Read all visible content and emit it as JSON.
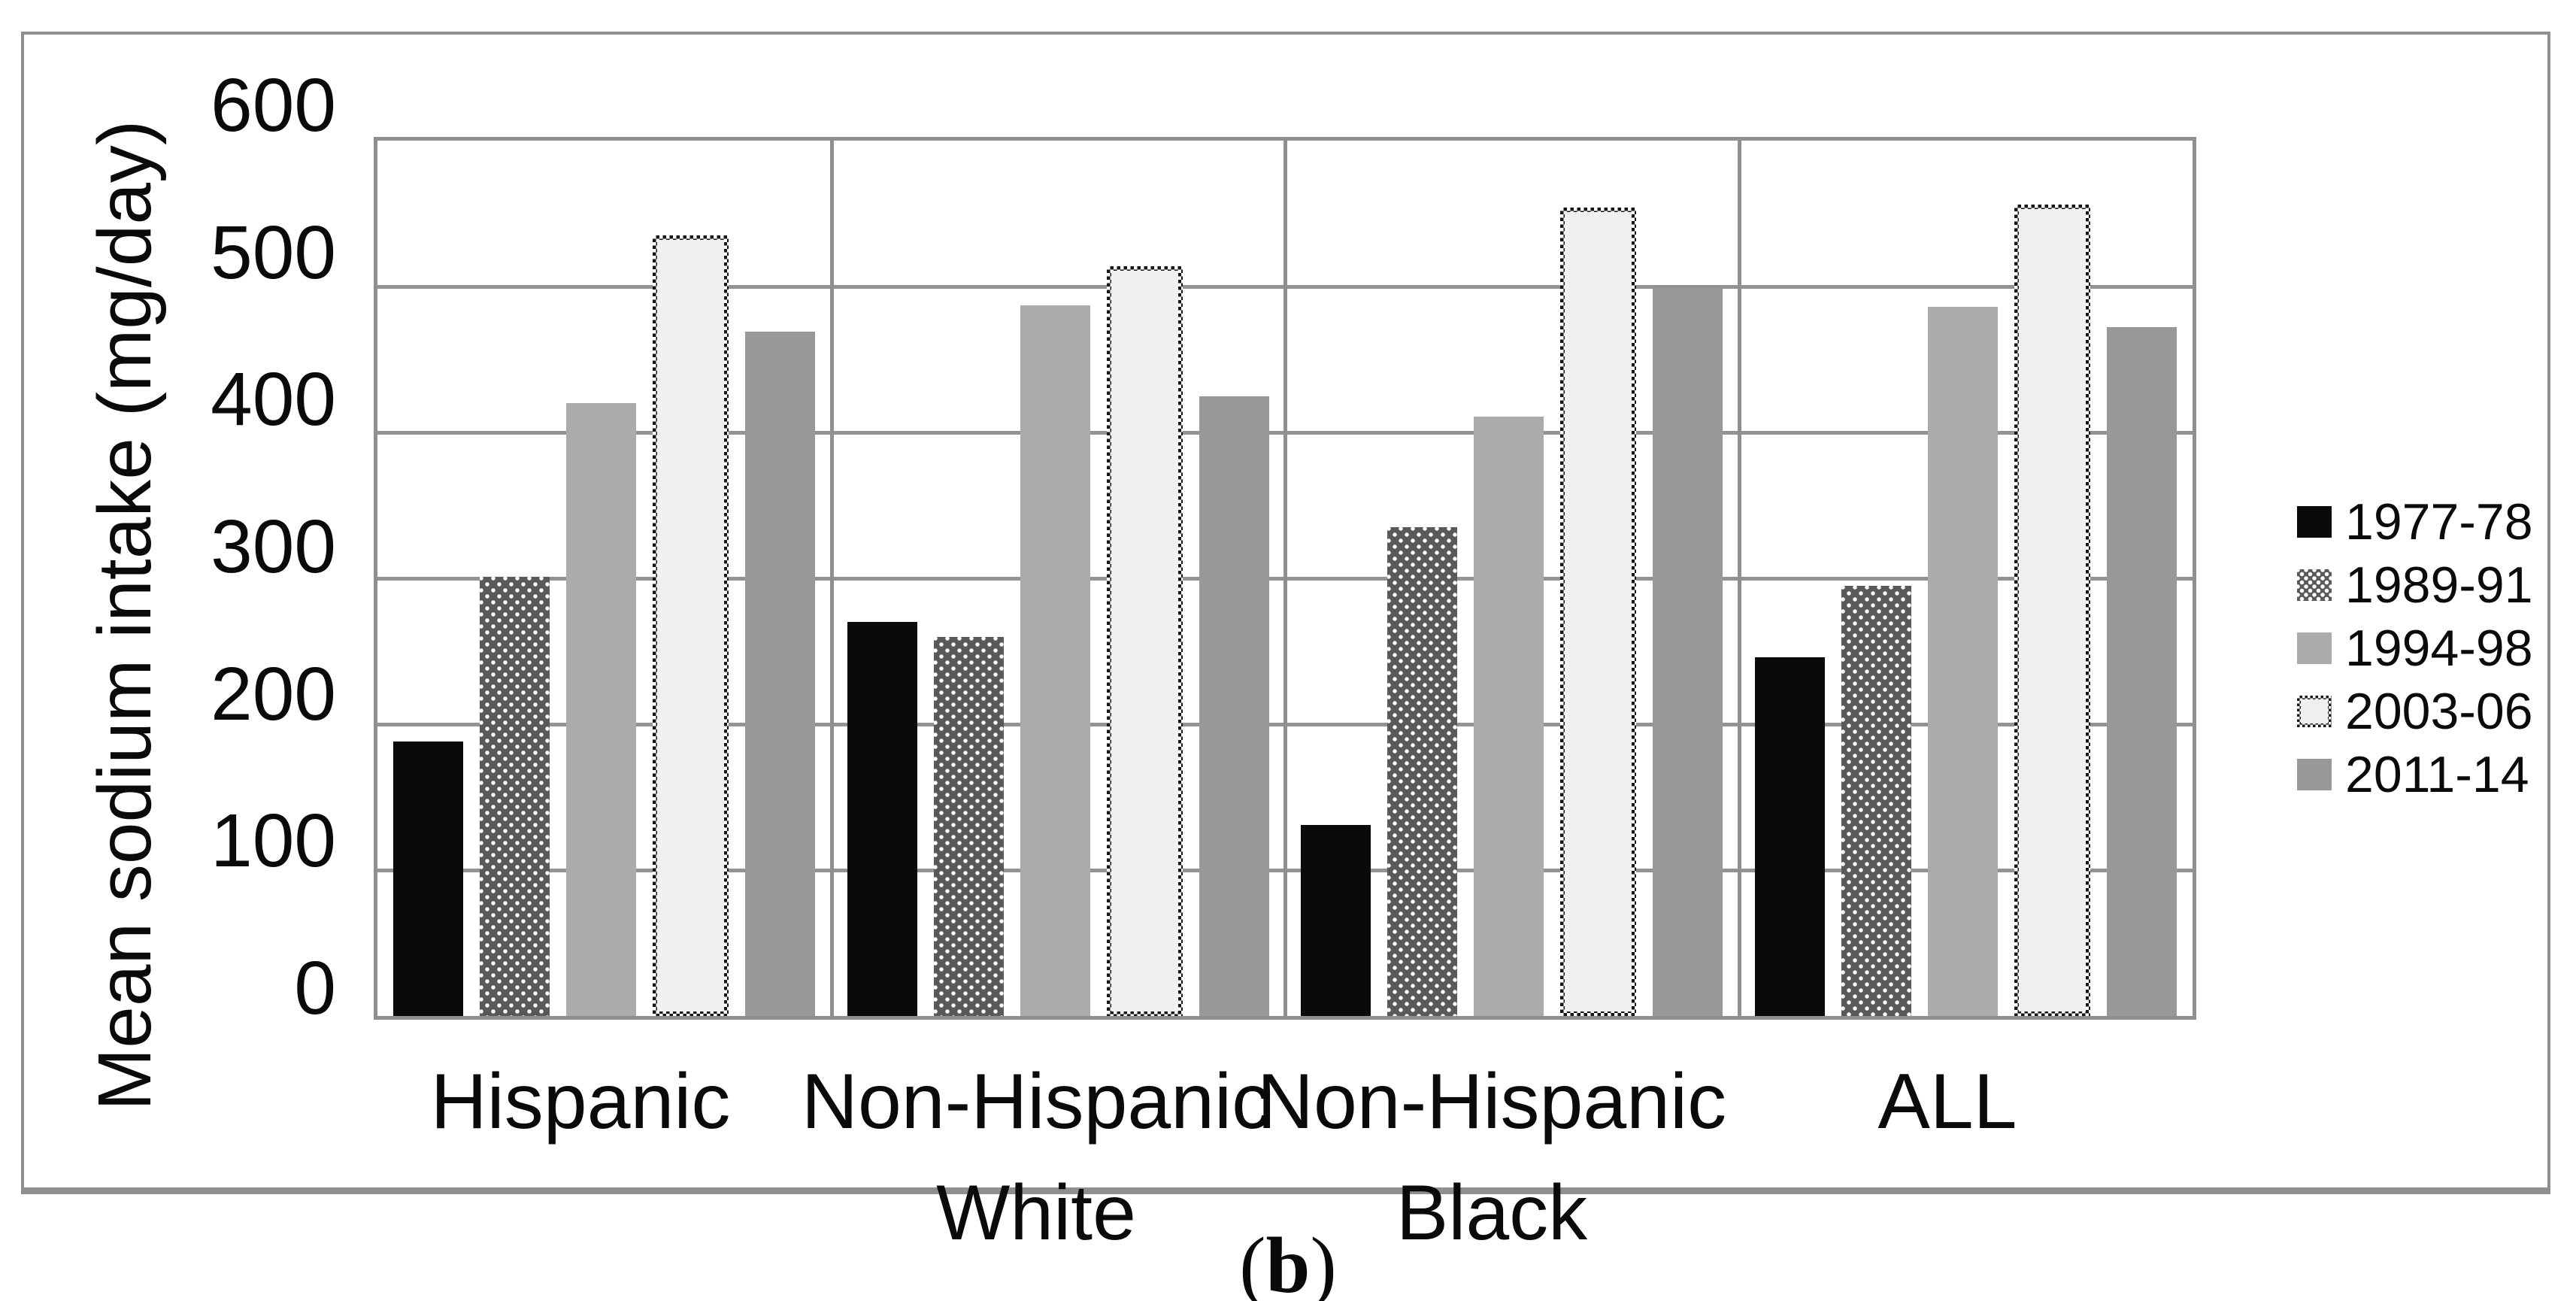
{
  "figure": {
    "caption_prefix": "(",
    "caption_letter": "b",
    "caption_suffix": ")"
  },
  "chart_data": {
    "type": "bar",
    "title": "",
    "xlabel": "",
    "ylabel": "Mean sodium intake (mg/day)",
    "ylim": [
      0,
      600
    ],
    "yticks": [
      0,
      100,
      200,
      300,
      400,
      500,
      600
    ],
    "grid": "horizontal gridlines and vertical category dividers, gray",
    "legend_position": "right",
    "categories": [
      "Hispanic",
      "Non-Hispanic White",
      "Non-Hispanic Black",
      "ALL"
    ],
    "categories_lines": [
      [
        "Hispanic"
      ],
      [
        "Non-Hispanic",
        "White"
      ],
      [
        "Non-Hispanic",
        "Black"
      ],
      [
        "ALL"
      ]
    ],
    "series": [
      {
        "name": "1977-78",
        "pattern": "solid",
        "fill": "#0a0a0a",
        "values": [
          188,
          270,
          131,
          246
        ]
      },
      {
        "name": "1989-91",
        "pattern": "white-dots",
        "fill": "#595959",
        "values": [
          301,
          260,
          335,
          295
        ]
      },
      {
        "name": "1994-98",
        "pattern": "solid",
        "fill": "#ababab",
        "values": [
          420,
          487,
          411,
          486
        ]
      },
      {
        "name": "2003-06",
        "pattern": "checker-border",
        "fill": "#f0f0f0",
        "values": [
          535,
          514,
          554,
          556
        ]
      },
      {
        "name": "2011-14",
        "pattern": "solid",
        "fill": "#989898",
        "values": [
          469,
          425,
          499,
          472
        ]
      }
    ]
  },
  "colors": {
    "frame_border": "#8f8f8f",
    "plot_border": "#8f8f8f",
    "gridline": "#939393",
    "checker_dark": "#161616",
    "checker_light": "#ffffff",
    "background": "#ffffff",
    "text": "#0a0a0a"
  }
}
